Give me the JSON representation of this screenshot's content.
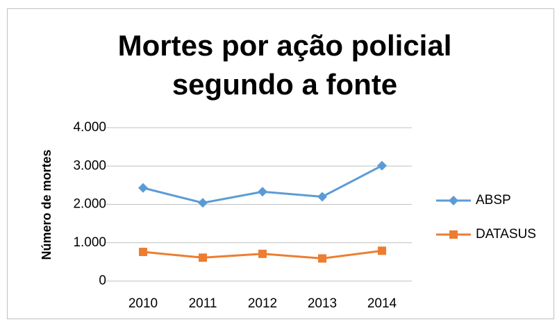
{
  "chart_data": {
    "type": "line",
    "title": "Mortes por ação policial segundo a fonte",
    "y_label": "Número de mortes",
    "categories": [
      "2010",
      "2011",
      "2012",
      "2013",
      "2014"
    ],
    "series": [
      {
        "name": "ABSP",
        "color": "#5b9bd5",
        "marker": "diamond",
        "values": [
          2430,
          2040,
          2330,
          2200,
          3010
        ]
      },
      {
        "name": "DATASUS",
        "color": "#ed7d31",
        "marker": "square",
        "values": [
          760,
          610,
          710,
          590,
          790
        ]
      }
    ],
    "ylim": [
      0,
      4000
    ],
    "yticks": [
      0,
      {
        "value": 1000,
        "label": "1.000"
      },
      {
        "value": 2000,
        "label": "2.000"
      },
      {
        "value": 3000,
        "label": "3.000"
      },
      {
        "value": 4000,
        "label": "4.000"
      }
    ],
    "grid": true,
    "legend": "right"
  }
}
